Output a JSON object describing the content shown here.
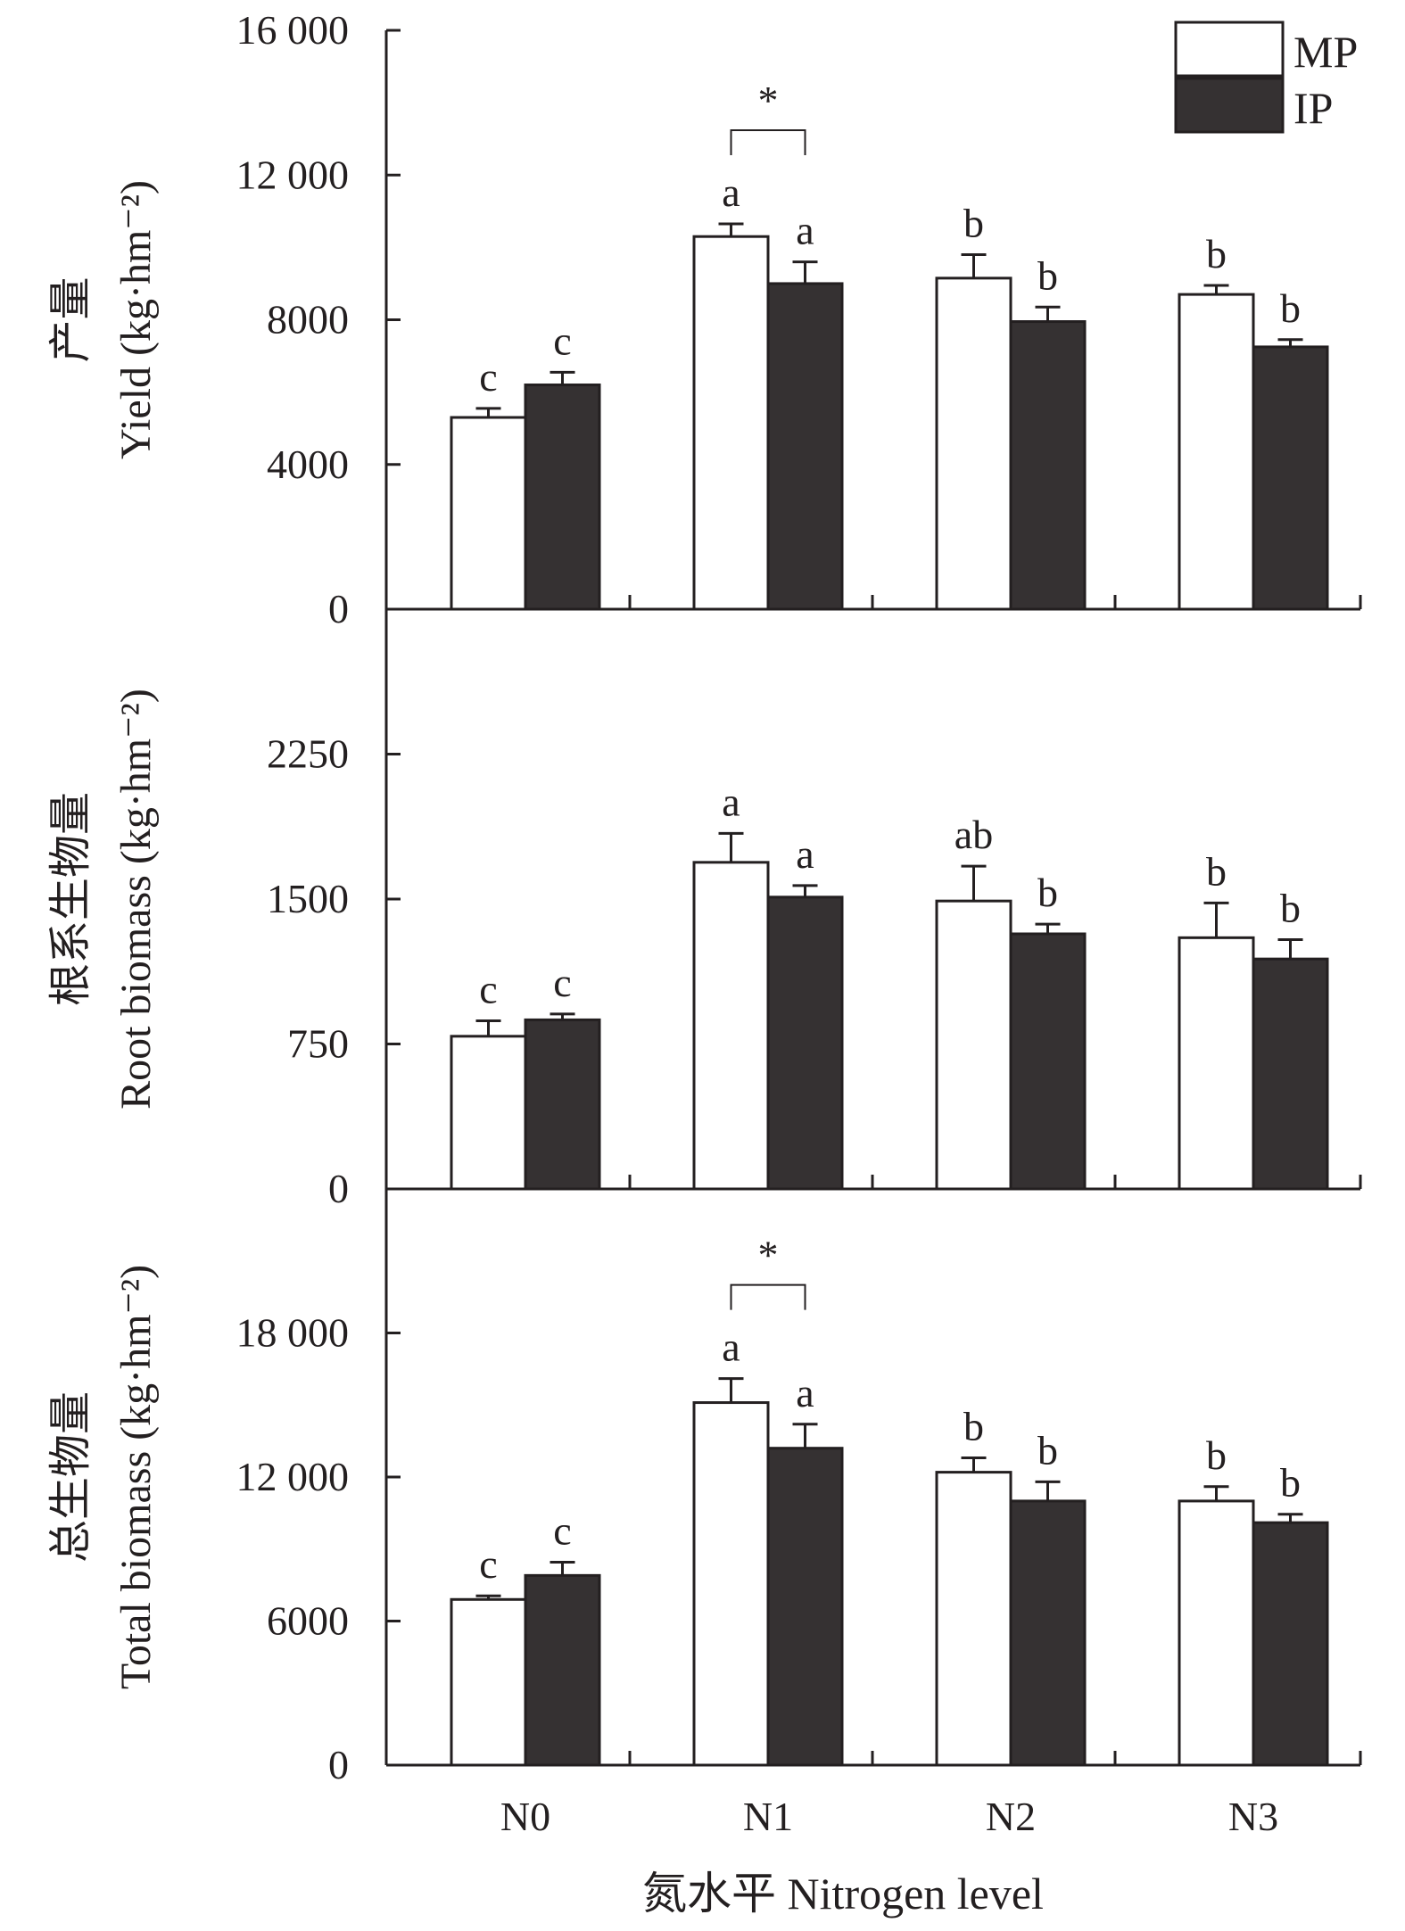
{
  "colors": {
    "mp_fill": "#ffffff",
    "ip_fill": "#353132",
    "stroke": "#231f20"
  },
  "x_axis": {
    "label": "氮水平 Nitrogen level"
  },
  "chart_data": [
    {
      "type": "bar",
      "categories": [
        "N0",
        "N1",
        "N2",
        "N3"
      ],
      "ylabel": [
        "产量",
        "Yield (kg·hm⁻²)"
      ],
      "ylim": [
        0,
        16000
      ],
      "yticks": [
        0,
        4000,
        8000,
        12000,
        16000
      ],
      "ytick_labels": [
        "0",
        "4000",
        "8000",
        "12 000",
        "16 000"
      ],
      "series": [
        {
          "name": "MP",
          "values": [
            5300,
            10300,
            9150,
            8700
          ],
          "errors": [
            250,
            350,
            650,
            250
          ],
          "labels": [
            "c",
            "a",
            "b",
            "b"
          ]
        },
        {
          "name": "IP",
          "values": [
            6200,
            9000,
            7950,
            7250
          ],
          "errors": [
            350,
            600,
            400,
            200
          ],
          "labels": [
            "c",
            "a",
            "b",
            "b"
          ]
        }
      ],
      "annotations": [
        {
          "category": "N1",
          "text": "*"
        }
      ],
      "legend": {
        "position": "top-right",
        "entries": [
          "MP",
          "IP"
        ]
      }
    },
    {
      "type": "bar",
      "categories": [
        "N0",
        "N1",
        "N2",
        "N3"
      ],
      "ylabel": [
        "根系生物量",
        "Root biomass (kg·hm⁻²)"
      ],
      "ylim": [
        0,
        3000
      ],
      "yticks": [
        0,
        750,
        1500,
        2250
      ],
      "ytick_labels": [
        "0",
        "750",
        "1500",
        "2250"
      ],
      "series": [
        {
          "name": "MP",
          "values": [
            790,
            1690,
            1490,
            1300
          ],
          "errors": [
            80,
            150,
            180,
            180
          ],
          "labels": [
            "c",
            "a",
            "ab",
            "b"
          ]
        },
        {
          "name": "IP",
          "values": [
            875,
            1510,
            1320,
            1190
          ],
          "errors": [
            30,
            60,
            50,
            100
          ],
          "labels": [
            "c",
            "a",
            "b",
            "b"
          ]
        }
      ],
      "annotations": []
    },
    {
      "type": "bar",
      "categories": [
        "N0",
        "N1",
        "N2",
        "N3"
      ],
      "ylabel": [
        "总生物量",
        "Total biomass (kg·hm⁻²)"
      ],
      "ylim": [
        0,
        24000
      ],
      "yticks": [
        0,
        6000,
        12000,
        18000
      ],
      "ytick_labels": [
        "0",
        "6000",
        "12 000",
        "18 000"
      ],
      "series": [
        {
          "name": "MP",
          "values": [
            6900,
            15100,
            12200,
            11000
          ],
          "errors": [
            150,
            1000,
            600,
            600
          ],
          "labels": [
            "c",
            "a",
            "b",
            "b"
          ]
        },
        {
          "name": "IP",
          "values": [
            7900,
            13200,
            11000,
            10100
          ],
          "errors": [
            550,
            1000,
            800,
            350
          ],
          "labels": [
            "c",
            "a",
            "b",
            "b"
          ]
        }
      ],
      "annotations": [
        {
          "category": "N1",
          "text": "*"
        }
      ]
    }
  ]
}
